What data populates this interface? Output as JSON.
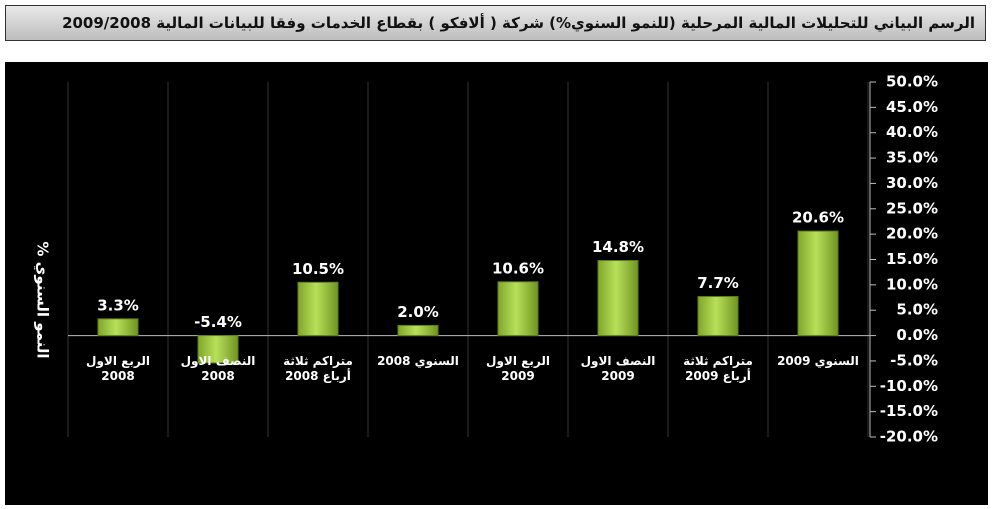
{
  "chart_data": {
    "type": "bar",
    "title": "الرسم البياني للتحليلات المالية المرحلية (للنمو السنوي%) شركة ( ألافكو ) بقطاع الخدمات وفقا للبيانات المالية 2009/2008",
    "y_label": "النمو السنوي %",
    "categories": [
      "الربع الاول 2008",
      "النصف الاول 2008",
      "متراكم ثلاثة أرباع 2008",
      "السنوي 2008",
      "الربع الاول 2009",
      "النصف الاول 2009",
      "متراكم ثلاثة أرباع 2009",
      "السنوي 2009"
    ],
    "values": [
      3.3,
      -5.4,
      10.5,
      2.0,
      10.6,
      14.8,
      7.7,
      20.6
    ],
    "value_labels": [
      "3.3%",
      "-5.4%",
      "10.5%",
      "2.0%",
      "10.6%",
      "14.8%",
      "7.7%",
      "20.6%"
    ],
    "color": "#9bc53d",
    "ylim": [
      -20,
      50
    ],
    "yticks": [
      {
        "value": -20,
        "label": "-20.0%"
      },
      {
        "value": -15,
        "label": "-15.0%"
      },
      {
        "value": -10,
        "label": "-10.0%"
      },
      {
        "value": -5,
        "label": "-5.0%"
      },
      {
        "value": 0,
        "label": "0.0%"
      },
      {
        "value": 5,
        "label": "5.0%"
      },
      {
        "value": 10,
        "label": "10.0%"
      },
      {
        "value": 15,
        "label": "15.0%"
      },
      {
        "value": 20,
        "label": "20.0%"
      },
      {
        "value": 25,
        "label": "25.0%"
      },
      {
        "value": 30,
        "label": "30.0%"
      },
      {
        "value": 35,
        "label": "35.0%"
      },
      {
        "value": 40,
        "label": "40.0%"
      },
      {
        "value": 45,
        "label": "45.0%"
      },
      {
        "value": 50,
        "label": "50.0%"
      }
    ]
  }
}
